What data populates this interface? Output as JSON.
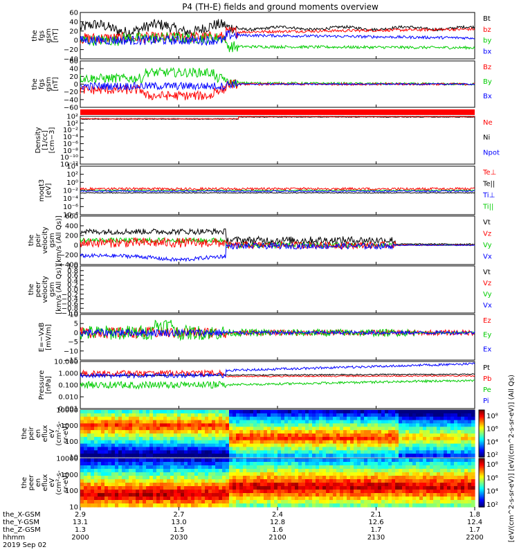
{
  "title": "P4 (TH-E) fields and ground moments overview",
  "colors": {
    "black": "#000000",
    "red": "#ff0000",
    "green": "#00cc00",
    "blue": "#0000ff",
    "frame": "#000000"
  },
  "chart_data": {
    "type": "line",
    "x_axis": {
      "start": "2000",
      "end": "2200",
      "tick_labels": [
        "2000",
        "2030",
        "2100",
        "2130",
        "2200"
      ],
      "ephemeris": {
        "row_labels": [
          "the_X-GSM",
          "the_Y-GSM",
          "the_Z-GSM",
          "hhmm",
          "2019 Sep 02"
        ],
        "columns": [
          [
            "2.9",
            "13.1",
            "1.3",
            "2000"
          ],
          [
            "2.7",
            "13.0",
            "1.5",
            "2030"
          ],
          [
            "2.4",
            "12.8",
            "1.6",
            "2100"
          ],
          [
            "2.1",
            "12.6",
            "1.7",
            "2130"
          ],
          [
            "1.8",
            "12.4",
            "1.7",
            "2200"
          ]
        ]
      }
    },
    "panels": [
      {
        "ylabel": [
          "the",
          "fgs",
          "gsm",
          "[nT]"
        ],
        "yticks": [
          "60",
          "40",
          "20",
          "0",
          "−20",
          "−40"
        ],
        "ylim": [
          -40,
          60
        ],
        "legend": [
          {
            "t": "Bt",
            "c": "black"
          },
          {
            "t": "bz",
            "c": "red"
          },
          {
            "t": "by",
            "c": "green"
          },
          {
            "t": "bx",
            "c": "blue"
          }
        ]
      },
      {
        "ylabel": [
          "the",
          "fgs",
          "gsm",
          "[nT]"
        ],
        "yticks": [
          "60",
          "40",
          "20",
          "0",
          "−20",
          "−40",
          "−60"
        ],
        "ylim": [
          -60,
          60
        ],
        "legend": [
          {
            "t": "Bz",
            "c": "red"
          },
          {
            "t": "By",
            "c": "green"
          },
          {
            "t": "Bx",
            "c": "blue"
          }
        ]
      },
      {
        "ylabel": [
          "Density",
          "[1/cc]",
          "[cm−3]"
        ],
        "yticks": [
          "10²",
          "10²",
          "10⁻²",
          "10⁻⁴",
          "10⁻⁶",
          "10⁻⁸",
          "10⁻¹⁰",
          "10⁻¹²"
        ],
        "log": true,
        "legend": [
          {
            "t": "Ne",
            "c": "red"
          },
          {
            "t": "Ni",
            "c": "black"
          },
          {
            "t": "Npot",
            "c": "blue"
          }
        ]
      },
      {
        "ylabel": [
          "moqt3",
          "[eV]"
        ],
        "yticks": [
          "10⁴",
          "10²",
          "10⁰",
          "10⁻²",
          "10⁻⁴",
          "10⁻⁶",
          "10⁻⁸"
        ],
        "log": true,
        "legend": [
          {
            "t": "Te⊥",
            "c": "red"
          },
          {
            "t": "Te||",
            "c": "black"
          },
          {
            "t": "Ti⊥",
            "c": "blue"
          },
          {
            "t": "Ti||",
            "c": "green"
          }
        ]
      },
      {
        "ylabel": [
          "the",
          "peir",
          "velocity",
          "gsm",
          "[km/s (All Qs)]"
        ],
        "yticks": [
          "600",
          "400",
          "200",
          "0",
          "−200",
          "−400"
        ],
        "ylim": [
          -400,
          600
        ],
        "legend": [
          {
            "t": "Vt",
            "c": "black"
          },
          {
            "t": "Vz",
            "c": "red"
          },
          {
            "t": "Vy",
            "c": "green"
          },
          {
            "t": "Vx",
            "c": "blue"
          }
        ]
      },
      {
        "ylabel": [
          "the",
          "peer",
          "velocity",
          "gsm",
          "[km/s (All Qs)]"
        ],
        "yticks": [
          "1.0",
          "0.8",
          "0.6",
          "0.4",
          "0.2",
          "0.0",
          "−0.2",
          "−0.4",
          "−0.6",
          "−0.8",
          "−1.0"
        ],
        "ylim": [
          -1,
          1
        ],
        "legend": [
          {
            "t": "Vt",
            "c": "black"
          },
          {
            "t": "Vz",
            "c": "red"
          },
          {
            "t": "Vy",
            "c": "green"
          },
          {
            "t": "Vx",
            "c": "blue"
          }
        ]
      },
      {
        "ylabel": [
          "E=−VxB",
          "[mV/m]"
        ],
        "yticks": [
          "10",
          "5",
          "0",
          "−5",
          "−10",
          "−15"
        ],
        "ylim": [
          -15,
          10
        ],
        "legend": [
          {
            "t": "Ez",
            "c": "red"
          },
          {
            "t": "Ey",
            "c": "green"
          },
          {
            "t": "Ex",
            "c": "blue"
          }
        ]
      },
      {
        "ylabel": [
          "Pressure",
          "[nPa]"
        ],
        "yticks": [
          "10.000",
          "1.000",
          "0.100",
          "0.010",
          "0.001"
        ],
        "log": true,
        "legend": [
          {
            "t": "Pt",
            "c": "black"
          },
          {
            "t": "Pb",
            "c": "red"
          },
          {
            "t": "Pe",
            "c": "green"
          },
          {
            "t": "Pi",
            "c": "blue"
          }
        ]
      },
      {
        "ylabel": [
          "the",
          "peir",
          "en",
          "eflux",
          "eV",
          "(cm²-s-",
          "sr-eV)"
        ],
        "yticks": [
          "10000",
          "1000",
          "100",
          "10"
        ],
        "spectrogram": true
      },
      {
        "ylabel": [
          "the",
          "peer",
          "en",
          "eflux",
          "eV",
          "(cm²-s-",
          "sr-eV)"
        ],
        "yticks": [
          "10000",
          "1000",
          "100",
          "10"
        ],
        "spectrogram": true
      }
    ],
    "colorbar": {
      "ticks": [
        "10⁸",
        "10⁶",
        "10⁴",
        "10²"
      ],
      "label": "[eV/(cm^2-s-sr-eV)] [eV/(cm^2-s-sr-eV)] (All Qs)"
    }
  }
}
